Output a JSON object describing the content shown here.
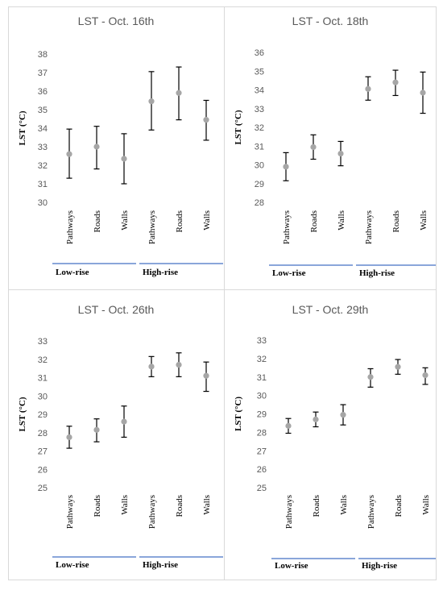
{
  "colors": {
    "marker": "#a6a6a6",
    "errorbar": "#000000",
    "group_line": "#4472c4",
    "text": "#595959",
    "border": "#d9d9d9"
  },
  "chart_data": [
    {
      "type": "scatter",
      "title": "LST - Oct. 16th",
      "ylabel": "LST (°C)",
      "ylim": [
        30,
        38
      ],
      "yticks": [
        "30",
        "31",
        "32",
        "33",
        "34",
        "35",
        "36",
        "37",
        "38"
      ],
      "categories": [
        "Pathways",
        "Roads",
        "Walls",
        "Pathways",
        "Roads",
        "Walls"
      ],
      "groups": [
        {
          "label": "Low-rise",
          "span": [
            0,
            2
          ]
        },
        {
          "label": "High-rise",
          "span": [
            3,
            5
          ]
        }
      ],
      "values": [
        32.6,
        33.0,
        32.35,
        35.45,
        35.9,
        34.45
      ],
      "error_low": [
        31.3,
        31.8,
        31.0,
        33.9,
        34.45,
        33.35
      ],
      "error_high": [
        33.95,
        34.1,
        33.7,
        37.05,
        37.3,
        35.5
      ],
      "grid": false,
      "legend": "none"
    },
    {
      "type": "scatter",
      "title": "LST - Oct. 18th",
      "ylabel": "LST (°C)",
      "ylim": [
        28,
        36
      ],
      "yticks": [
        "28",
        "29",
        "30",
        "31",
        "32",
        "33",
        "34",
        "35",
        "36"
      ],
      "categories": [
        "Pathways",
        "Roads",
        "Walls",
        "Pathways",
        "Roads",
        "Walls"
      ],
      "groups": [
        {
          "label": "Low-rise",
          "span": [
            0,
            2
          ]
        },
        {
          "label": "High-rise",
          "span": [
            3,
            5
          ]
        }
      ],
      "values": [
        29.9,
        30.95,
        30.6,
        34.05,
        34.4,
        33.85
      ],
      "error_low": [
        29.15,
        30.3,
        29.95,
        33.45,
        33.7,
        32.75
      ],
      "error_high": [
        30.65,
        31.6,
        31.25,
        34.7,
        35.05,
        34.95
      ],
      "grid": false,
      "legend": "none"
    },
    {
      "type": "scatter",
      "title": "LST - Oct. 26th",
      "ylabel": "LST (°C)",
      "ylim": [
        25,
        33
      ],
      "yticks": [
        "25",
        "26",
        "27",
        "28",
        "29",
        "30",
        "31",
        "32",
        "33"
      ],
      "categories": [
        "Pathways",
        "Roads",
        "Walls",
        "Pathways",
        "Roads",
        "Walls"
      ],
      "groups": [
        {
          "label": "Low-rise",
          "span": [
            0,
            2
          ]
        },
        {
          "label": "High-rise",
          "span": [
            3,
            5
          ]
        }
      ],
      "values": [
        27.75,
        28.15,
        28.6,
        31.6,
        31.7,
        31.1
      ],
      "error_low": [
        27.15,
        27.5,
        27.75,
        31.05,
        31.05,
        30.25
      ],
      "error_high": [
        28.35,
        28.75,
        29.45,
        32.15,
        32.35,
        31.85
      ],
      "grid": false,
      "legend": "none"
    },
    {
      "type": "scatter",
      "title": "LST - Oct. 29th",
      "ylabel": "LST (°C)",
      "ylim": [
        25,
        33
      ],
      "yticks": [
        "25",
        "26",
        "27",
        "28",
        "29",
        "30",
        "31",
        "32",
        "33"
      ],
      "categories": [
        "Pathways",
        "Roads",
        "Walls",
        "Pathways",
        "Roads",
        "Walls"
      ],
      "groups": [
        {
          "label": "Low-rise",
          "span": [
            0,
            2
          ]
        },
        {
          "label": "High-rise",
          "span": [
            3,
            5
          ]
        }
      ],
      "values": [
        28.35,
        28.7,
        28.95,
        31.0,
        31.55,
        31.1
      ],
      "error_low": [
        27.95,
        28.3,
        28.4,
        30.45,
        31.15,
        30.6
      ],
      "error_high": [
        28.75,
        29.1,
        29.5,
        31.45,
        31.95,
        31.5
      ],
      "grid": false,
      "legend": "none"
    }
  ]
}
